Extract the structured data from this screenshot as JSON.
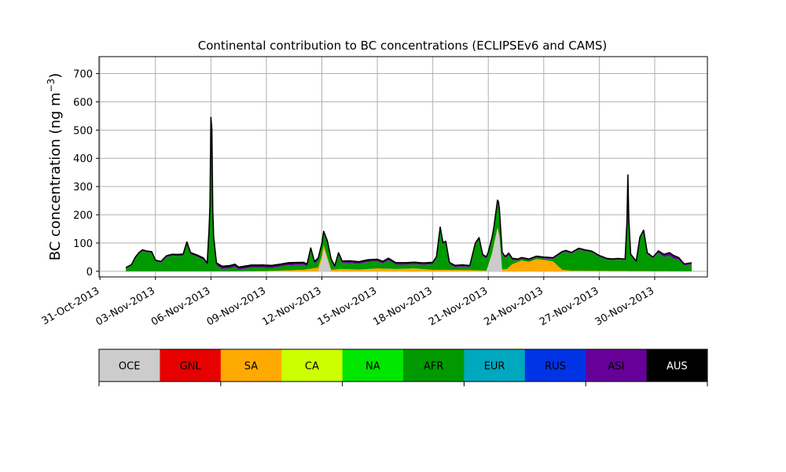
{
  "chart_data": [
    {
      "type": "area",
      "title": "Continental contribution to BC concentrations (ECLIPSEv6 and CAMS)",
      "ylabel": "BC concentration (ng m",
      "ylabel_sup": "−3",
      "ylabel_close": ")",
      "xlabel": "",
      "ylim": [
        -20,
        760
      ],
      "yticks": [
        0,
        100,
        200,
        300,
        400,
        500,
        600,
        700
      ],
      "xticks": [
        "31-Oct-2013",
        "03-Nov-2013",
        "06-Nov-2013",
        "09-Nov-2013",
        "12-Nov-2013",
        "15-Nov-2013",
        "18-Nov-2013",
        "21-Nov-2013",
        "24-Nov-2013",
        "27-Nov-2013",
        "30-Nov-2013"
      ],
      "xlim_days": [
        -0.05,
        32.85
      ],
      "grid": true,
      "stack_order": [
        "OCE",
        "SA",
        "AFR",
        "ASI",
        "AUS"
      ],
      "series": [
        {
          "name": "OCE",
          "color": "#cccccc",
          "points": [
            [
              1.4,
              0
            ],
            [
              11.8,
              0
            ],
            [
              12.0,
              40
            ],
            [
              12.1,
              80
            ],
            [
              12.2,
              60
            ],
            [
              12.5,
              0
            ],
            [
              20.9,
              0
            ],
            [
              21.2,
              60
            ],
            [
              21.5,
              150
            ],
            [
              21.6,
              120
            ],
            [
              21.75,
              0
            ],
            [
              32.0,
              0
            ]
          ]
        },
        {
          "name": "SA",
          "color": "#ffaa00",
          "points": [
            [
              1.4,
              0
            ],
            [
              7.0,
              0
            ],
            [
              9.0,
              1
            ],
            [
              10.0,
              3
            ],
            [
              11.0,
              5
            ],
            [
              12.0,
              15
            ],
            [
              12.5,
              5
            ],
            [
              13.0,
              8
            ],
            [
              14.0,
              6
            ],
            [
              15.0,
              10
            ],
            [
              16.0,
              8
            ],
            [
              17.0,
              10
            ],
            [
              18.0,
              5
            ],
            [
              20.0,
              4
            ],
            [
              21.0,
              2
            ],
            [
              22.0,
              8
            ],
            [
              22.3,
              25
            ],
            [
              22.8,
              38
            ],
            [
              23.2,
              33
            ],
            [
              23.6,
              43
            ],
            [
              24.0,
              40
            ],
            [
              24.5,
              35
            ],
            [
              25.0,
              5
            ],
            [
              25.5,
              2
            ],
            [
              32.0,
              0
            ]
          ]
        },
        {
          "name": "AFR",
          "color": "#009900",
          "points": [
            [
              1.4,
              10
            ],
            [
              1.7,
              20
            ],
            [
              1.9,
              45
            ],
            [
              2.1,
              62
            ],
            [
              2.3,
              72
            ],
            [
              2.5,
              68
            ],
            [
              2.8,
              65
            ],
            [
              3.0,
              35
            ],
            [
              3.3,
              30
            ],
            [
              3.6,
              50
            ],
            [
              3.9,
              55
            ],
            [
              4.2,
              54
            ],
            [
              4.5,
              55
            ],
            [
              4.7,
              98
            ],
            [
              4.9,
              60
            ],
            [
              5.3,
              50
            ],
            [
              5.6,
              40
            ],
            [
              5.8,
              22
            ],
            [
              5.95,
              200
            ],
            [
              6.0,
              480
            ],
            [
              6.05,
              300
            ],
            [
              6.15,
              110
            ],
            [
              6.3,
              20
            ],
            [
              6.6,
              8
            ],
            [
              7.0,
              10
            ],
            [
              7.3,
              15
            ],
            [
              7.5,
              5
            ],
            [
              7.8,
              8
            ],
            [
              8.2,
              12
            ],
            [
              8.8,
              12
            ],
            [
              9.3,
              10
            ],
            [
              9.8,
              14
            ],
            [
              10.2,
              18
            ],
            [
              10.6,
              18
            ],
            [
              11.0,
              18
            ],
            [
              11.2,
              10
            ],
            [
              11.4,
              65
            ],
            [
              11.6,
              15
            ],
            [
              11.9,
              30
            ],
            [
              12.1,
              40
            ],
            [
              12.3,
              50
            ],
            [
              12.5,
              30
            ],
            [
              12.7,
              5
            ],
            [
              12.9,
              50
            ],
            [
              13.1,
              20
            ],
            [
              13.5,
              22
            ],
            [
              14.0,
              20
            ],
            [
              14.5,
              25
            ],
            [
              15.0,
              25
            ],
            [
              15.3,
              18
            ],
            [
              15.6,
              30
            ],
            [
              16.0,
              15
            ],
            [
              16.5,
              14
            ],
            [
              17.0,
              15
            ],
            [
              17.5,
              15
            ],
            [
              18.0,
              20
            ],
            [
              18.2,
              40
            ],
            [
              18.4,
              145
            ],
            [
              18.55,
              90
            ],
            [
              18.7,
              95
            ],
            [
              18.9,
              20
            ],
            [
              19.2,
              10
            ],
            [
              19.6,
              12
            ],
            [
              20.0,
              10
            ],
            [
              20.3,
              90
            ],
            [
              20.5,
              110
            ],
            [
              20.7,
              50
            ],
            [
              21.0,
              40
            ],
            [
              21.3,
              55
            ],
            [
              21.55,
              100
            ],
            [
              21.75,
              55
            ],
            [
              21.9,
              40
            ],
            [
              22.1,
              45
            ],
            [
              22.3,
              15
            ],
            [
              22.6,
              5
            ],
            [
              23.0,
              5
            ],
            [
              23.5,
              5
            ],
            [
              24.0,
              5
            ],
            [
              24.5,
              8
            ],
            [
              25.0,
              60
            ],
            [
              25.2,
              65
            ],
            [
              25.5,
              60
            ],
            [
              25.9,
              75
            ],
            [
              26.2,
              70
            ],
            [
              26.6,
              65
            ],
            [
              27.0,
              50
            ],
            [
              27.4,
              40
            ],
            [
              27.7,
              38
            ],
            [
              28.0,
              40
            ],
            [
              28.4,
              38
            ],
            [
              28.55,
              200
            ],
            [
              28.7,
              55
            ],
            [
              29.0,
              30
            ],
            [
              29.2,
              115
            ],
            [
              29.4,
              140
            ],
            [
              29.6,
              60
            ],
            [
              29.9,
              45
            ],
            [
              30.2,
              65
            ],
            [
              30.5,
              50
            ],
            [
              30.8,
              55
            ],
            [
              31.0,
              45
            ],
            [
              31.3,
              40
            ],
            [
              31.6,
              20
            ],
            [
              32.0,
              25
            ]
          ]
        },
        {
          "name": "ASI",
          "color": "#660099",
          "points": [
            [
              1.4,
              2
            ],
            [
              5.9,
              2
            ],
            [
              6.0,
              60
            ],
            [
              6.1,
              5
            ],
            [
              28.4,
              2
            ],
            [
              28.55,
              40
            ],
            [
              28.7,
              3
            ],
            [
              30.0,
              3
            ],
            [
              30.5,
              8
            ],
            [
              31.0,
              10
            ],
            [
              31.5,
              5
            ],
            [
              32.0,
              4
            ]
          ]
        },
        {
          "name": "AUS",
          "color": "#000000",
          "points": [
            [
              1.4,
              1
            ],
            [
              6.0,
              5
            ],
            [
              6.05,
              170
            ],
            [
              6.1,
              5
            ],
            [
              28.5,
              2
            ],
            [
              28.55,
              100
            ],
            [
              28.6,
              2
            ],
            [
              32.0,
              1
            ]
          ]
        }
      ],
      "legend": {
        "placement": "bottom",
        "entries": [
          {
            "label": "OCE",
            "color": "#cccccc",
            "text_color": "#000000"
          },
          {
            "label": "GNL",
            "color": "#e60000",
            "text_color": "#000000"
          },
          {
            "label": "SA",
            "color": "#ffaa00",
            "text_color": "#000000"
          },
          {
            "label": "CA",
            "color": "#ccff00",
            "text_color": "#000000"
          },
          {
            "label": "NA",
            "color": "#00e600",
            "text_color": "#000000"
          },
          {
            "label": "AFR",
            "color": "#009900",
            "text_color": "#000000"
          },
          {
            "label": "EUR",
            "color": "#00a8bf",
            "text_color": "#000000"
          },
          {
            "label": "RUS",
            "color": "#0033e6",
            "text_color": "#000000"
          },
          {
            "label": "ASI",
            "color": "#660099",
            "text_color": "#000000"
          },
          {
            "label": "AUS",
            "color": "#000000",
            "text_color": "#ffffff"
          }
        ]
      }
    }
  ]
}
